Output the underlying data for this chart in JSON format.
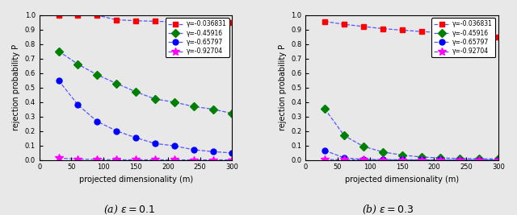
{
  "m_values": [
    30,
    60,
    90,
    120,
    150,
    180,
    210,
    240,
    270,
    300
  ],
  "epsilon_a": 0.1,
  "epsilon_b": 0.3,
  "data_a": {
    "gamma1": [
      0.999,
      0.998,
      0.997,
      0.966,
      0.96,
      0.956,
      0.952,
      0.95,
      0.947,
      0.945
    ],
    "gamma2": [
      0.75,
      0.66,
      0.587,
      0.527,
      0.47,
      0.42,
      0.398,
      0.368,
      0.35,
      0.32
    ],
    "gamma3": [
      0.548,
      0.38,
      0.265,
      0.2,
      0.153,
      0.113,
      0.097,
      0.07,
      0.057,
      0.048
    ],
    "gamma4": [
      0.012,
      0.005,
      0.003,
      0.001,
      0.001,
      0.0005,
      0.0003,
      0.0002,
      0.0001,
      0.0001
    ]
  },
  "data_b": {
    "gamma1": [
      0.955,
      0.935,
      0.92,
      0.905,
      0.895,
      0.885,
      0.878,
      0.872,
      0.865,
      0.845
    ],
    "gamma2": [
      0.352,
      0.168,
      0.093,
      0.055,
      0.033,
      0.02,
      0.013,
      0.01,
      0.008,
      0.006
    ],
    "gamma3": [
      0.065,
      0.014,
      0.004,
      0.002,
      0.001,
      0.0005,
      0.0003,
      0.0002,
      0.0001,
      0.0001
    ],
    "gamma4": [
      0.003,
      0.001,
      0.0005,
      0.0002,
      0.0001,
      5e-05,
      3e-05,
      2e-05,
      1e-05,
      1e-05
    ]
  },
  "gamma_labels": [
    "γ=-0.036831",
    "γ=-0.45916",
    "γ=-0.65797",
    "γ=-0.92704"
  ],
  "colors": [
    "red",
    "green",
    "blue",
    "magenta"
  ],
  "markers": [
    "s",
    "D",
    "o",
    "*"
  ],
  "xlabel": "projected dimensionality (m)",
  "ylabel": "rejection probability P",
  "xlim": [
    0,
    300
  ],
  "ylim": [
    0,
    1
  ],
  "yticks_a": [
    0.0,
    0.1,
    0.2,
    0.3,
    0.4,
    0.5,
    0.6,
    0.7,
    0.8,
    0.9,
    1.0
  ],
  "yticks_b": [
    0.0,
    0.1,
    0.2,
    0.3,
    0.4,
    0.5,
    0.6,
    0.7,
    0.8,
    0.9,
    1.0
  ],
  "xticks": [
    0,
    50,
    100,
    150,
    200,
    250,
    300
  ],
  "caption_a": "(a) $\\epsilon = 0.1$",
  "caption_b": "(b) $\\epsilon = 0.3$",
  "bg_color": "#e8e8e8",
  "line_color": "#5555ff",
  "legend_fontsize": 5.5,
  "tick_fontsize": 6,
  "label_fontsize": 7,
  "marker_size": 5
}
